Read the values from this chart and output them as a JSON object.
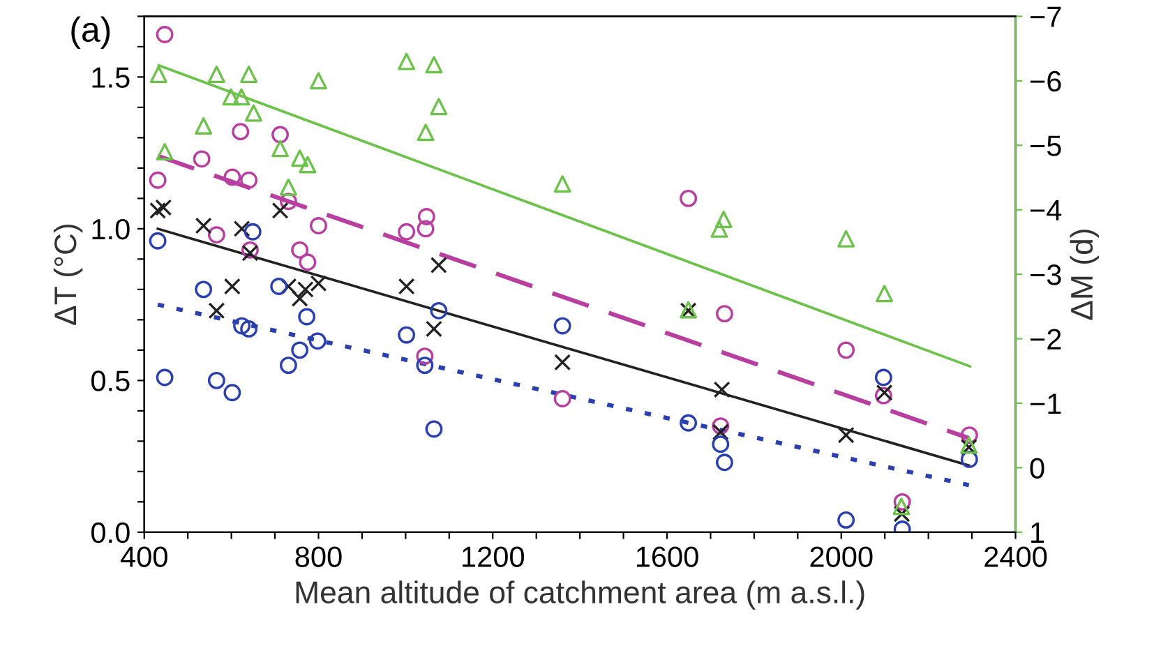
{
  "chart_data": {
    "type": "scatter",
    "xlabel": "Mean altitude of catchment area (m a.s.l.)",
    "ylabel": "ΔT (°C)",
    "y2label": "ΔM (d)",
    "annotations": [
      "(a)"
    ],
    "xlim": [
      400,
      2400
    ],
    "xticks": [
      400,
      {
        "value": 500,
        "label": null
      },
      {
        "value": 600,
        "label": null
      },
      {
        "value": 700,
        "label": null
      },
      800,
      {
        "value": 900,
        "label": null
      },
      {
        "value": 1000,
        "label": null
      },
      {
        "value": 1100,
        "label": null
      },
      1200,
      {
        "value": 1300,
        "label": null
      },
      {
        "value": 1400,
        "label": null
      },
      {
        "value": 1500,
        "label": null
      },
      1600,
      {
        "value": 1700,
        "label": null
      },
      {
        "value": 1800,
        "label": null
      },
      {
        "value": 1900,
        "label": null
      },
      2000,
      {
        "value": 2100,
        "label": null
      },
      {
        "value": 2200,
        "label": null
      },
      {
        "value": 2300,
        "label": null
      },
      2400
    ],
    "ylim": [
      0,
      1.7
    ],
    "yticks": [
      {
        "value": 0,
        "label": "0.0"
      },
      {
        "value": 0.1,
        "label": null
      },
      {
        "value": 0.2,
        "label": null
      },
      {
        "value": 0.3,
        "label": null
      },
      {
        "value": 0.4,
        "label": null
      },
      0.5,
      {
        "value": 0.6,
        "label": null
      },
      {
        "value": 0.7,
        "label": null
      },
      {
        "value": 0.8,
        "label": null
      },
      {
        "value": 0.9,
        "label": null
      },
      {
        "value": 1,
        "label": "1.0"
      },
      {
        "value": 1.1,
        "label": null
      },
      {
        "value": 1.2,
        "label": null
      },
      {
        "value": 1.3,
        "label": null
      },
      {
        "value": 1.4,
        "label": null
      },
      1.5,
      {
        "value": 1.6,
        "label": null
      },
      {
        "value": 1.7,
        "label": null
      }
    ],
    "y2lim": [
      1,
      -7
    ],
    "y2ticks": [
      {
        "value": -7,
        "label": "−7"
      },
      {
        "value": -6,
        "label": "−6"
      },
      {
        "value": -5,
        "label": "−5"
      },
      {
        "value": -4,
        "label": "−4"
      },
      {
        "value": -3,
        "label": "−3"
      },
      {
        "value": -2,
        "label": "−2"
      },
      {
        "value": -1,
        "label": "−1"
      },
      0,
      1
    ],
    "series": [
      {
        "marker": "triangle",
        "axis": "y2",
        "color": "#6cc24a",
        "x": [
          433,
          447,
          536,
          566,
          599,
          623,
          640,
          651,
          712,
          731,
          757,
          775,
          800,
          1002,
          1046,
          1065,
          1076,
          1360,
          1649,
          1720,
          1730,
          2011,
          2099,
          2138,
          2293
        ],
        "values": [
          -6.1,
          -4.9,
          -5.3,
          -6.1,
          -5.75,
          -5.75,
          -6.1,
          -5.5,
          -4.95,
          -4.35,
          -4.8,
          -4.7,
          -6.0,
          -6.3,
          -5.2,
          -6.25,
          -5.6,
          -4.4,
          -2.45,
          -3.7,
          -3.85,
          -3.55,
          -2.7,
          0.6,
          -0.35
        ]
      },
      {
        "marker": "circle",
        "color": "#b83ea0",
        "x": [
          447,
          431,
          532,
          566,
          602,
          621,
          640,
          643,
          712,
          731,
          757,
          775,
          800,
          1002,
          1046,
          1048,
          1044,
          1360,
          1649,
          1732,
          1723,
          2011,
          2097,
          2140,
          2294
        ],
        "values": [
          1.64,
          1.16,
          1.23,
          0.98,
          1.17,
          1.32,
          1.16,
          0.93,
          1.31,
          1.09,
          0.93,
          0.89,
          1.01,
          0.99,
          1.0,
          1.04,
          0.58,
          0.44,
          1.1,
          0.72,
          0.35,
          0.6,
          0.45,
          0.1,
          0.32
        ]
      },
      {
        "marker": "cross",
        "color": "#222222",
        "x": [
          431,
          444,
          536,
          566,
          602,
          624,
          643,
          712,
          731,
          757,
          770,
          800,
          1002,
          1065,
          1076,
          1360,
          1649,
          1723,
          1726,
          2011,
          2099,
          2139,
          2293
        ],
        "values": [
          1.06,
          1.07,
          1.01,
          0.73,
          0.81,
          1.0,
          0.92,
          1.06,
          0.81,
          0.77,
          0.8,
          0.82,
          0.81,
          0.67,
          0.88,
          0.56,
          0.73,
          0.33,
          0.47,
          0.32,
          0.46,
          0.06,
          0.28
        ]
      },
      {
        "marker": "circle",
        "color": "#2a3fb0",
        "x": [
          431,
          447,
          536,
          566,
          602,
          624,
          640,
          649,
          709,
          731,
          757,
          773,
          798,
          1002,
          1044,
          1065,
          1076,
          1360,
          1649,
          1723,
          1732,
          2011,
          2097,
          2140,
          2294
        ],
        "values": [
          0.96,
          0.51,
          0.8,
          0.5,
          0.46,
          0.68,
          0.67,
          0.99,
          0.81,
          0.55,
          0.6,
          0.71,
          0.63,
          0.65,
          0.55,
          0.34,
          0.73,
          0.68,
          0.36,
          0.29,
          0.23,
          0.04,
          0.51,
          0.01,
          0.24
        ]
      },
      {
        "type": "line",
        "line_style": "solid",
        "axis": "y2",
        "color": "#6cc24a",
        "x": [
          433,
          2296
        ],
        "values": [
          -6.24,
          -1.57
        ]
      },
      {
        "type": "line",
        "line_style": "dashed",
        "color": "#b83ea0",
        "x": [
          431,
          2293
        ],
        "values": [
          1.24,
          0.31
        ]
      },
      {
        "type": "line",
        "line_style": "solid",
        "color": "#222222",
        "x": [
          431,
          2293
        ],
        "values": [
          1.0,
          0.22
        ]
      },
      {
        "type": "line",
        "line_style": "dotted",
        "color": "#2a3fb0",
        "x": [
          431,
          2293
        ],
        "values": [
          0.75,
          0.155
        ]
      }
    ]
  }
}
